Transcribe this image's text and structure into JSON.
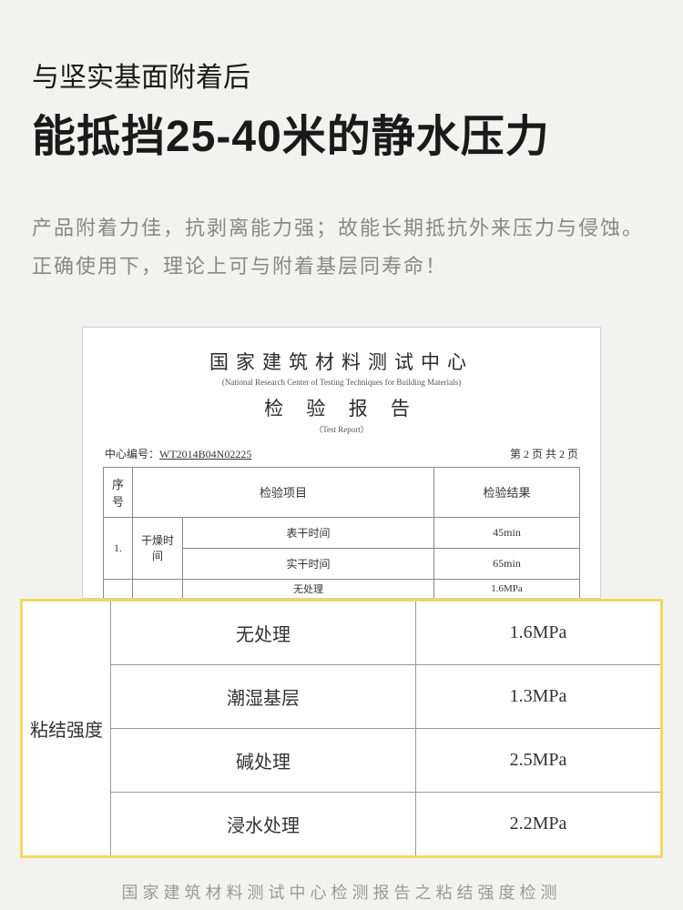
{
  "header": {
    "subtitle": "与坚实基面附着后",
    "title": "能抵挡25-40米的静水压力"
  },
  "description": {
    "line1": "产品附着力佳，抗剥离能力强；故能长期抵抗外来压力与侵蚀。",
    "line2": "正确使用下，理论上可与附着基层同寿命！"
  },
  "report": {
    "title_cn": "国家建筑材料测试中心",
    "title_en": "(National Research Center of Testing Techniques for Building Materials)",
    "subtitle_cn": "检 验 报 告",
    "subtitle_en": "（Test Report）",
    "id_label": "中心编号：",
    "id_value": "WT2014B04N02225",
    "page_info": "第 2 页  共 2 页",
    "columns": {
      "seq": "序号",
      "item": "检验项目",
      "result": "检验结果"
    },
    "rows": [
      {
        "seq": "1.",
        "category": "干燥时间",
        "item": "表干时间",
        "result": "45min"
      },
      {
        "seq": "",
        "category": "",
        "item": "实干时间",
        "result": "65min"
      }
    ],
    "truncated": {
      "item": "无处理",
      "result": "1.6MPa"
    }
  },
  "highlight": {
    "category": "粘结强度",
    "rows": [
      {
        "item": "无处理",
        "result": "1.6MPa"
      },
      {
        "item": "潮湿基层",
        "result": "1.3MPa"
      },
      {
        "item": "碱处理",
        "result": "2.5MPa"
      },
      {
        "item": "浸水处理",
        "result": "2.2MPa"
      }
    ],
    "border_color": "#f0d960"
  },
  "caption": "国家建筑材料测试中心检测报告之粘结强度检测",
  "colors": {
    "background": "#f2f2f0",
    "text_dark": "#1a1a1a",
    "text_gray": "#888888",
    "report_bg": "#ffffff",
    "table_border": "#888888"
  }
}
